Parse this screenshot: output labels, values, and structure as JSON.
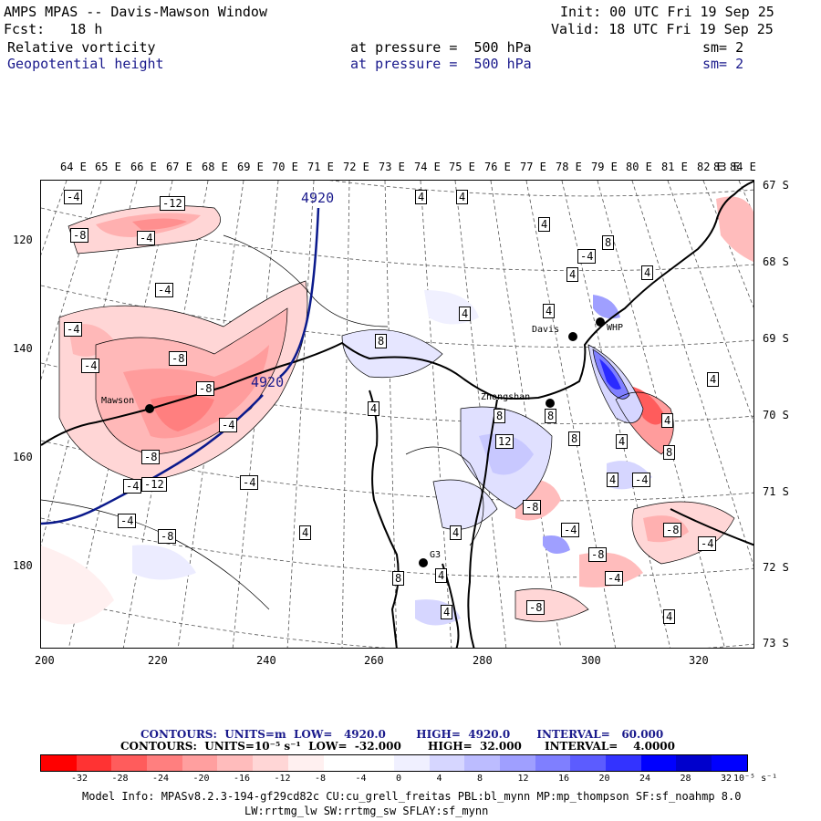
{
  "header": {
    "title": "AMPS MPAS -- Davis-Mawson Window",
    "fcst": "Fcst:   18 h",
    "init": "Init: 00 UTC Fri 19 Sep 25",
    "valid": "Valid: 18 UTC Fri 19 Sep 25",
    "field1": {
      "name": "Relative vorticity",
      "level": "at pressure =  500 hPa",
      "sm": "sm= 2"
    },
    "field2": {
      "name": "Geopotential height",
      "level": "at pressure =  500 hPa",
      "sm": "sm= 2"
    }
  },
  "axes": {
    "top_lon": [
      "64 E",
      "65 E",
      "66 E",
      "67 E",
      "68 E",
      "69 E",
      "70 E",
      "71 E",
      "72 E",
      "73 E",
      "74 E",
      "75 E",
      "76 E",
      "77 E",
      "78 E",
      "79 E",
      "80 E",
      "81 E",
      "82 E",
      "83 E",
      "84 E"
    ],
    "left_y": [
      "120",
      "140",
      "160",
      "180"
    ],
    "right_lat": [
      "67 S",
      "68 S",
      "69 S",
      "70 S",
      "71 S",
      "72 S",
      "73 S"
    ],
    "bottom_x": [
      "200",
      "220",
      "240",
      "260",
      "280",
      "300",
      "320"
    ]
  },
  "stations": [
    {
      "name": "Mawson"
    },
    {
      "name": "Davis"
    },
    {
      "name": "WHP"
    },
    {
      "name": "Zhongshan"
    },
    {
      "name": "G3"
    }
  ],
  "height_labels": [
    "4920",
    "4920"
  ],
  "vort_labels": [
    "-4",
    "-12",
    "-8",
    "-4",
    "-4",
    "-4",
    "-8",
    "-4",
    "-8",
    "-4",
    "-8",
    "-12",
    "-4",
    "-4",
    "-4",
    "-8",
    "4",
    "4",
    "8",
    "4",
    "4",
    "8",
    "4",
    "4",
    "8",
    "8",
    "12",
    "8",
    "4",
    "4",
    "4",
    "4",
    "8",
    "-4",
    "4",
    "-4",
    "4",
    "-4",
    "-8",
    "-4",
    "-8",
    "-4",
    "-8",
    "-8",
    "4",
    "8",
    "4",
    "4",
    "4",
    "4"
  ],
  "contour_info": {
    "line1": "CONTOURS:  UNITS=m  LOW=   4920.0        HIGH=  4920.0       INTERVAL=   60.000",
    "line2": "CONTOURS:  UNITS=10⁻⁵ s⁻¹  LOW=  -32.000       HIGH=  32.000      INTERVAL=    4.0000"
  },
  "colorbar": {
    "colors": [
      "#ff0000",
      "#ff3333",
      "#ff5c5c",
      "#ff7f7f",
      "#ff9f9f",
      "#ffbcbc",
      "#ffd6d6",
      "#fff0f0",
      "#ffffff",
      "#ffffff",
      "#f0f0ff",
      "#d6d6ff",
      "#bcbcff",
      "#9f9fff",
      "#7f7fff",
      "#5c5cff",
      "#3333ff",
      "#0000ff",
      "#0000cc",
      "#0000ff"
    ],
    "labels": [
      "-32",
      "-28",
      "-24",
      "-20",
      "-16",
      "-12",
      "-8",
      "-4",
      "0",
      "4",
      "8",
      "12",
      "16",
      "20",
      "24",
      "28",
      "32"
    ],
    "unit": "10⁻⁵ s⁻¹"
  },
  "footer": {
    "line1": "Model Info: MPASv8.2.3-194-gf29cd82c CU:cu_grell_freitas PBL:bl_mynn MP:mp_thompson SF:sf_noahmp 8.0",
    "line2": "LW:rrtmg_lw SW:rrtmg_sw SFLAY:sf_mynn"
  }
}
